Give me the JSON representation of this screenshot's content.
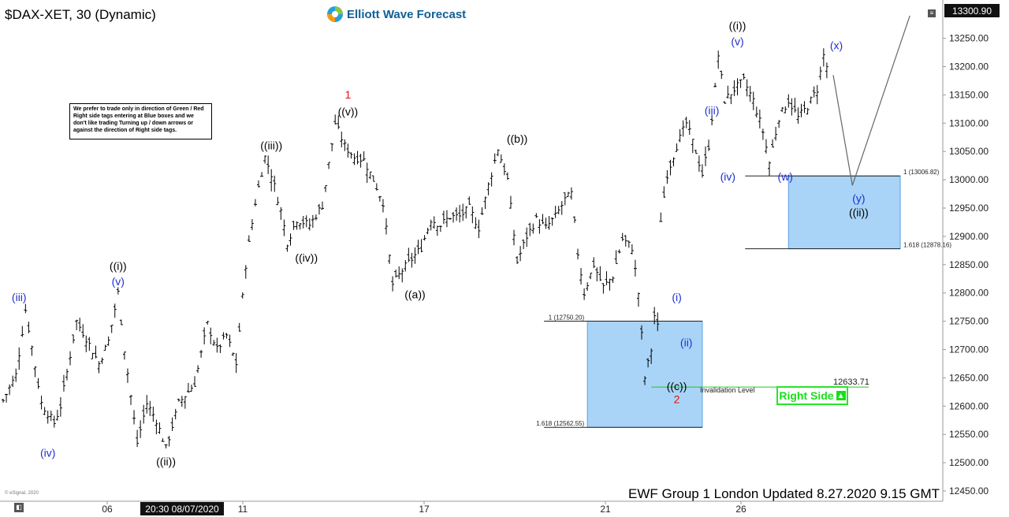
{
  "header": {
    "symbol": "$DAX-XET, 30 (Dynamic)",
    "logo_text": "Elliott Wave Forecast",
    "current_price": "13300.90"
  },
  "note": "We prefer to trade only in direction of Green / Red Right side tags entering at Blue boxes and we don't like trading Turning up / down arrows or against the direction of Right side tags.",
  "footer": "EWF Group 1 London Updated 8.27.2020 9.15 GMT",
  "copyright": "© eSignal, 2020",
  "right_side_label": "Right Side",
  "crosshair_date": "20:30 08/07/2020",
  "chart_data": {
    "type": "candlestick",
    "y_axis": {
      "min": 12450,
      "max": 13300,
      "ticks": [
        "13250.00",
        "13200.00",
        "13150.00",
        "13100.00",
        "13050.00",
        "13000.00",
        "12950.00",
        "12900.00",
        "12850.00",
        "12800.00",
        "12750.00",
        "12700.00",
        "12650.00",
        "12600.00",
        "12550.00",
        "12500.00",
        "12450.00"
      ]
    },
    "x_axis": {
      "ticks": [
        "06",
        "11",
        "17",
        "21",
        "26"
      ]
    },
    "colors": {
      "price_bars": "#000000",
      "blue_labels": "#1f2fcf",
      "red_labels": "#e01010",
      "box_fill": "#a9d4f7",
      "box_border": "#5aa0e0",
      "invalidation_line": "#1ec81e",
      "projection_line": "#666666"
    },
    "price_path": [
      {
        "bar": 0,
        "price": 12610
      },
      {
        "bar": 4,
        "price": 12655
      },
      {
        "bar": 7,
        "price": 12770
      },
      {
        "bar": 12,
        "price": 12605
      },
      {
        "bar": 16,
        "price": 12570
      },
      {
        "bar": 18,
        "price": 12600
      },
      {
        "bar": 23,
        "price": 12750
      },
      {
        "bar": 26,
        "price": 12720
      },
      {
        "bar": 30,
        "price": 12675
      },
      {
        "bar": 33,
        "price": 12715
      },
      {
        "bar": 36,
        "price": 12800
      },
      {
        "bar": 38,
        "price": 12700
      },
      {
        "bar": 42,
        "price": 12535
      },
      {
        "bar": 45,
        "price": 12605
      },
      {
        "bar": 48,
        "price": 12575
      },
      {
        "bar": 51,
        "price": 12525
      },
      {
        "bar": 55,
        "price": 12605
      },
      {
        "bar": 60,
        "price": 12640
      },
      {
        "bar": 64,
        "price": 12745
      },
      {
        "bar": 67,
        "price": 12700
      },
      {
        "bar": 70,
        "price": 12725
      },
      {
        "bar": 73,
        "price": 12675
      },
      {
        "bar": 76,
        "price": 12850
      },
      {
        "bar": 79,
        "price": 12960
      },
      {
        "bar": 82,
        "price": 13040
      },
      {
        "bar": 84,
        "price": 13010
      },
      {
        "bar": 87,
        "price": 12945
      },
      {
        "bar": 89,
        "price": 12890
      },
      {
        "bar": 92,
        "price": 12930
      },
      {
        "bar": 96,
        "price": 12920
      },
      {
        "bar": 100,
        "price": 12955
      },
      {
        "bar": 104,
        "price": 13100
      },
      {
        "bar": 107,
        "price": 13060
      },
      {
        "bar": 110,
        "price": 13040
      },
      {
        "bar": 113,
        "price": 13035
      },
      {
        "bar": 116,
        "price": 13000
      },
      {
        "bar": 119,
        "price": 12960
      },
      {
        "bar": 122,
        "price": 12815
      },
      {
        "bar": 125,
        "price": 12840
      },
      {
        "bar": 128,
        "price": 12860
      },
      {
        "bar": 131,
        "price": 12880
      },
      {
        "bar": 134,
        "price": 12930
      },
      {
        "bar": 137,
        "price": 12920
      },
      {
        "bar": 140,
        "price": 12935
      },
      {
        "bar": 143,
        "price": 12935
      },
      {
        "bar": 146,
        "price": 12950
      },
      {
        "bar": 149,
        "price": 12915
      },
      {
        "bar": 152,
        "price": 12990
      },
      {
        "bar": 155,
        "price": 13055
      },
      {
        "bar": 158,
        "price": 13000
      },
      {
        "bar": 161,
        "price": 12855
      },
      {
        "bar": 164,
        "price": 12900
      },
      {
        "bar": 167,
        "price": 12930
      },
      {
        "bar": 170,
        "price": 12915
      },
      {
        "bar": 173,
        "price": 12935
      },
      {
        "bar": 176,
        "price": 12965
      },
      {
        "bar": 178,
        "price": 12975
      },
      {
        "bar": 180,
        "price": 12870
      },
      {
        "bar": 182,
        "price": 12800
      },
      {
        "bar": 185,
        "price": 12850
      },
      {
        "bar": 188,
        "price": 12810
      },
      {
        "bar": 191,
        "price": 12830
      },
      {
        "bar": 194,
        "price": 12895
      },
      {
        "bar": 197,
        "price": 12880
      },
      {
        "bar": 199,
        "price": 12800
      },
      {
        "bar": 201,
        "price": 12650
      },
      {
        "bar": 203,
        "price": 12700
      },
      {
        "bar": 204,
        "price": 12760
      },
      {
        "bar": 205,
        "price": 12740
      },
      {
        "bar": 206,
        "price": 12930
      },
      {
        "bar": 208,
        "price": 13010
      },
      {
        "bar": 211,
        "price": 13060
      },
      {
        "bar": 214,
        "price": 13100
      },
      {
        "bar": 217,
        "price": 13050
      },
      {
        "bar": 219,
        "price": 13010
      },
      {
        "bar": 221,
        "price": 13060
      },
      {
        "bar": 223,
        "price": 13160
      },
      {
        "bar": 224,
        "price": 13220
      },
      {
        "bar": 226,
        "price": 13140
      },
      {
        "bar": 229,
        "price": 13160
      },
      {
        "bar": 232,
        "price": 13175
      },
      {
        "bar": 235,
        "price": 13140
      },
      {
        "bar": 238,
        "price": 13085
      },
      {
        "bar": 240,
        "price": 13030
      },
      {
        "bar": 243,
        "price": 13110
      },
      {
        "bar": 246,
        "price": 13140
      },
      {
        "bar": 249,
        "price": 13110
      },
      {
        "bar": 252,
        "price": 13130
      },
      {
        "bar": 255,
        "price": 13160
      },
      {
        "bar": 257,
        "price": 13220
      },
      {
        "bar": 259,
        "price": 13180
      }
    ],
    "projection": [
      {
        "bar": 260,
        "price": 13185
      },
      {
        "bar": 266,
        "price": 12990
      },
      {
        "bar": 284,
        "price": 13290
      }
    ],
    "boxes": [
      {
        "bar_from": 183,
        "bar_to": 219,
        "top": 12750.2,
        "bottom": 12562.55,
        "top_label": "1 (12750.20)",
        "bottom_label": "1.618 (12562.55)"
      },
      {
        "bar_from": 246,
        "bar_to": 281,
        "top": 13006.82,
        "bottom": 12878.16,
        "top_label": "1 (13006.82)",
        "bottom_label": "1.618 (12878.16)"
      }
    ],
    "invalidation": {
      "price": 12633.71,
      "label": "Invalidation Level",
      "value_label": "12633.71",
      "bar_from": 203
    },
    "annotations": [
      {
        "text": "(iii)",
        "color": "blue",
        "bar": 5,
        "price": 12780,
        "pos": "above"
      },
      {
        "text": "(iv)",
        "color": "blue",
        "bar": 14,
        "price": 12530,
        "pos": "below"
      },
      {
        "text": "((i))",
        "color": "black",
        "bar": 36,
        "price": 12835,
        "pos": "above"
      },
      {
        "text": "(v)",
        "color": "blue",
        "bar": 36,
        "price": 12808,
        "pos": "above"
      },
      {
        "text": "((ii))",
        "color": "black",
        "bar": 51,
        "price": 12515,
        "pos": "below"
      },
      {
        "text": "((iii))",
        "color": "black",
        "bar": 84,
        "price": 13048,
        "pos": "above"
      },
      {
        "text": "((iv))",
        "color": "black",
        "bar": 95,
        "price": 12875,
        "pos": "below"
      },
      {
        "text": "1",
        "color": "red",
        "bar": 108,
        "price": 13138,
        "pos": "above"
      },
      {
        "text": "((v))",
        "color": "black",
        "bar": 108,
        "price": 13108,
        "pos": "above"
      },
      {
        "text": "((a))",
        "color": "black",
        "bar": 129,
        "price": 12810,
        "pos": "below"
      },
      {
        "text": "((b))",
        "color": "black",
        "bar": 161,
        "price": 13060,
        "pos": "above"
      },
      {
        "text": "(i)",
        "color": "blue",
        "bar": 211,
        "price": 12780,
        "pos": "above"
      },
      {
        "text": "(ii)",
        "color": "blue",
        "bar": 214,
        "price": 12725,
        "pos": "below"
      },
      {
        "text": "((c))",
        "color": "black",
        "bar": 211,
        "price": 12648,
        "pos": "below"
      },
      {
        "text": "2",
        "color": "red",
        "bar": 211,
        "price": 12625,
        "pos": "below"
      },
      {
        "text": "(iii)",
        "color": "blue",
        "bar": 222,
        "price": 13110,
        "pos": "above"
      },
      {
        "text": "(iv)",
        "color": "blue",
        "bar": 227,
        "price": 13018,
        "pos": "below"
      },
      {
        "text": "((i))",
        "color": "black",
        "bar": 230,
        "price": 13260,
        "pos": "above"
      },
      {
        "text": "(v)",
        "color": "blue",
        "bar": 230,
        "price": 13232,
        "pos": "above"
      },
      {
        "text": "(w)",
        "color": "blue",
        "bar": 245,
        "price": 13018,
        "pos": "below"
      },
      {
        "text": "(x)",
        "color": "blue",
        "bar": 261,
        "price": 13225,
        "pos": "above"
      },
      {
        "text": "(y)",
        "color": "blue",
        "bar": 268,
        "price": 12980,
        "pos": "below"
      },
      {
        "text": "((ii))",
        "color": "black",
        "bar": 268,
        "price": 12955,
        "pos": "below"
      }
    ]
  }
}
